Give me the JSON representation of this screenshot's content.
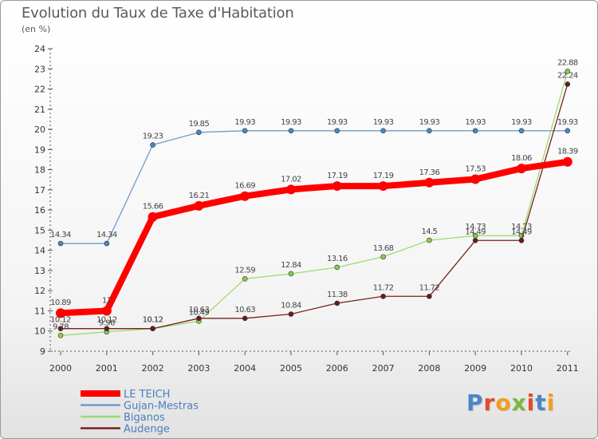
{
  "header": {
    "title": "Evolution du Taux de Taxe d'Habitation",
    "unit": "(en %)"
  },
  "logo": {
    "text": "Proxiti",
    "letter_colors": [
      "#4a86c8",
      "#e24b2b",
      "#f0a01e",
      "#7cb83a",
      "#e24b2b",
      "#4a86c8",
      "#f0a01e"
    ]
  },
  "chart_data": {
    "type": "line",
    "title": "Evolution du Taux de Taxe d'Habitation",
    "ylabel": "(en %)",
    "xlabel": "",
    "ylim": [
      9,
      24
    ],
    "yticks": [
      9,
      10,
      11,
      12,
      13,
      14,
      15,
      16,
      17,
      18,
      19,
      20,
      21,
      22,
      23,
      24
    ],
    "categories": [
      "2000",
      "2001",
      "2002",
      "2003",
      "2004",
      "2005",
      "2006",
      "2007",
      "2008",
      "2009",
      "2010",
      "2011"
    ],
    "grid": false,
    "legend_position": "bottom-left",
    "series": [
      {
        "name": "LE TEICH",
        "color": "#ff0000",
        "style": "thick",
        "values": [
          10.89,
          11,
          15.66,
          16.21,
          16.69,
          17.02,
          17.19,
          17.19,
          17.36,
          17.53,
          18.06,
          18.39
        ],
        "labels": [
          "10.89",
          "11",
          "15.66",
          "16.21",
          "16.69",
          "17.02",
          "17.19",
          "17.19",
          "17.36",
          "17.53",
          "18.06",
          "18.39"
        ]
      },
      {
        "name": "Gujan-Mestras",
        "color": "#6e9bd0",
        "marker": "#4a86c8",
        "style": "thin",
        "values": [
          14.34,
          14.34,
          19.23,
          19.85,
          19.93,
          19.93,
          19.93,
          19.93,
          19.93,
          19.93,
          19.93,
          19.93
        ],
        "labels": [
          "14.34",
          "14.34",
          "19.23",
          "19.85",
          "19.93",
          "19.93",
          "19.93",
          "19.93",
          "19.93",
          "19.93",
          "19.93",
          "19.93"
        ]
      },
      {
        "name": "Biganos",
        "color": "#9bdc70",
        "marker": "#86cf4a",
        "style": "thin",
        "values": [
          9.78,
          9.96,
          10.12,
          10.49,
          12.59,
          12.84,
          13.16,
          13.68,
          14.5,
          14.73,
          14.73,
          22.88
        ],
        "labels": [
          "9.78",
          "9.96",
          "10.12",
          "10.49",
          "12.59",
          "12.84",
          "13.16",
          "13.68",
          "14.5",
          "14.73",
          "14.73",
          "22.88"
        ]
      },
      {
        "name": "Audenge",
        "color": "#7a2020",
        "marker": "#6b1a1a",
        "style": "thin",
        "values": [
          10.12,
          10.12,
          10.12,
          10.63,
          10.63,
          10.84,
          11.38,
          11.72,
          11.72,
          14.49,
          14.49,
          22.24
        ],
        "labels": [
          "10.12",
          "10.12",
          "10.12",
          "10.63",
          "10.63",
          "10.84",
          "11.38",
          "11.72",
          "11.72",
          "14.49",
          "14.49",
          "22.24"
        ]
      }
    ]
  }
}
